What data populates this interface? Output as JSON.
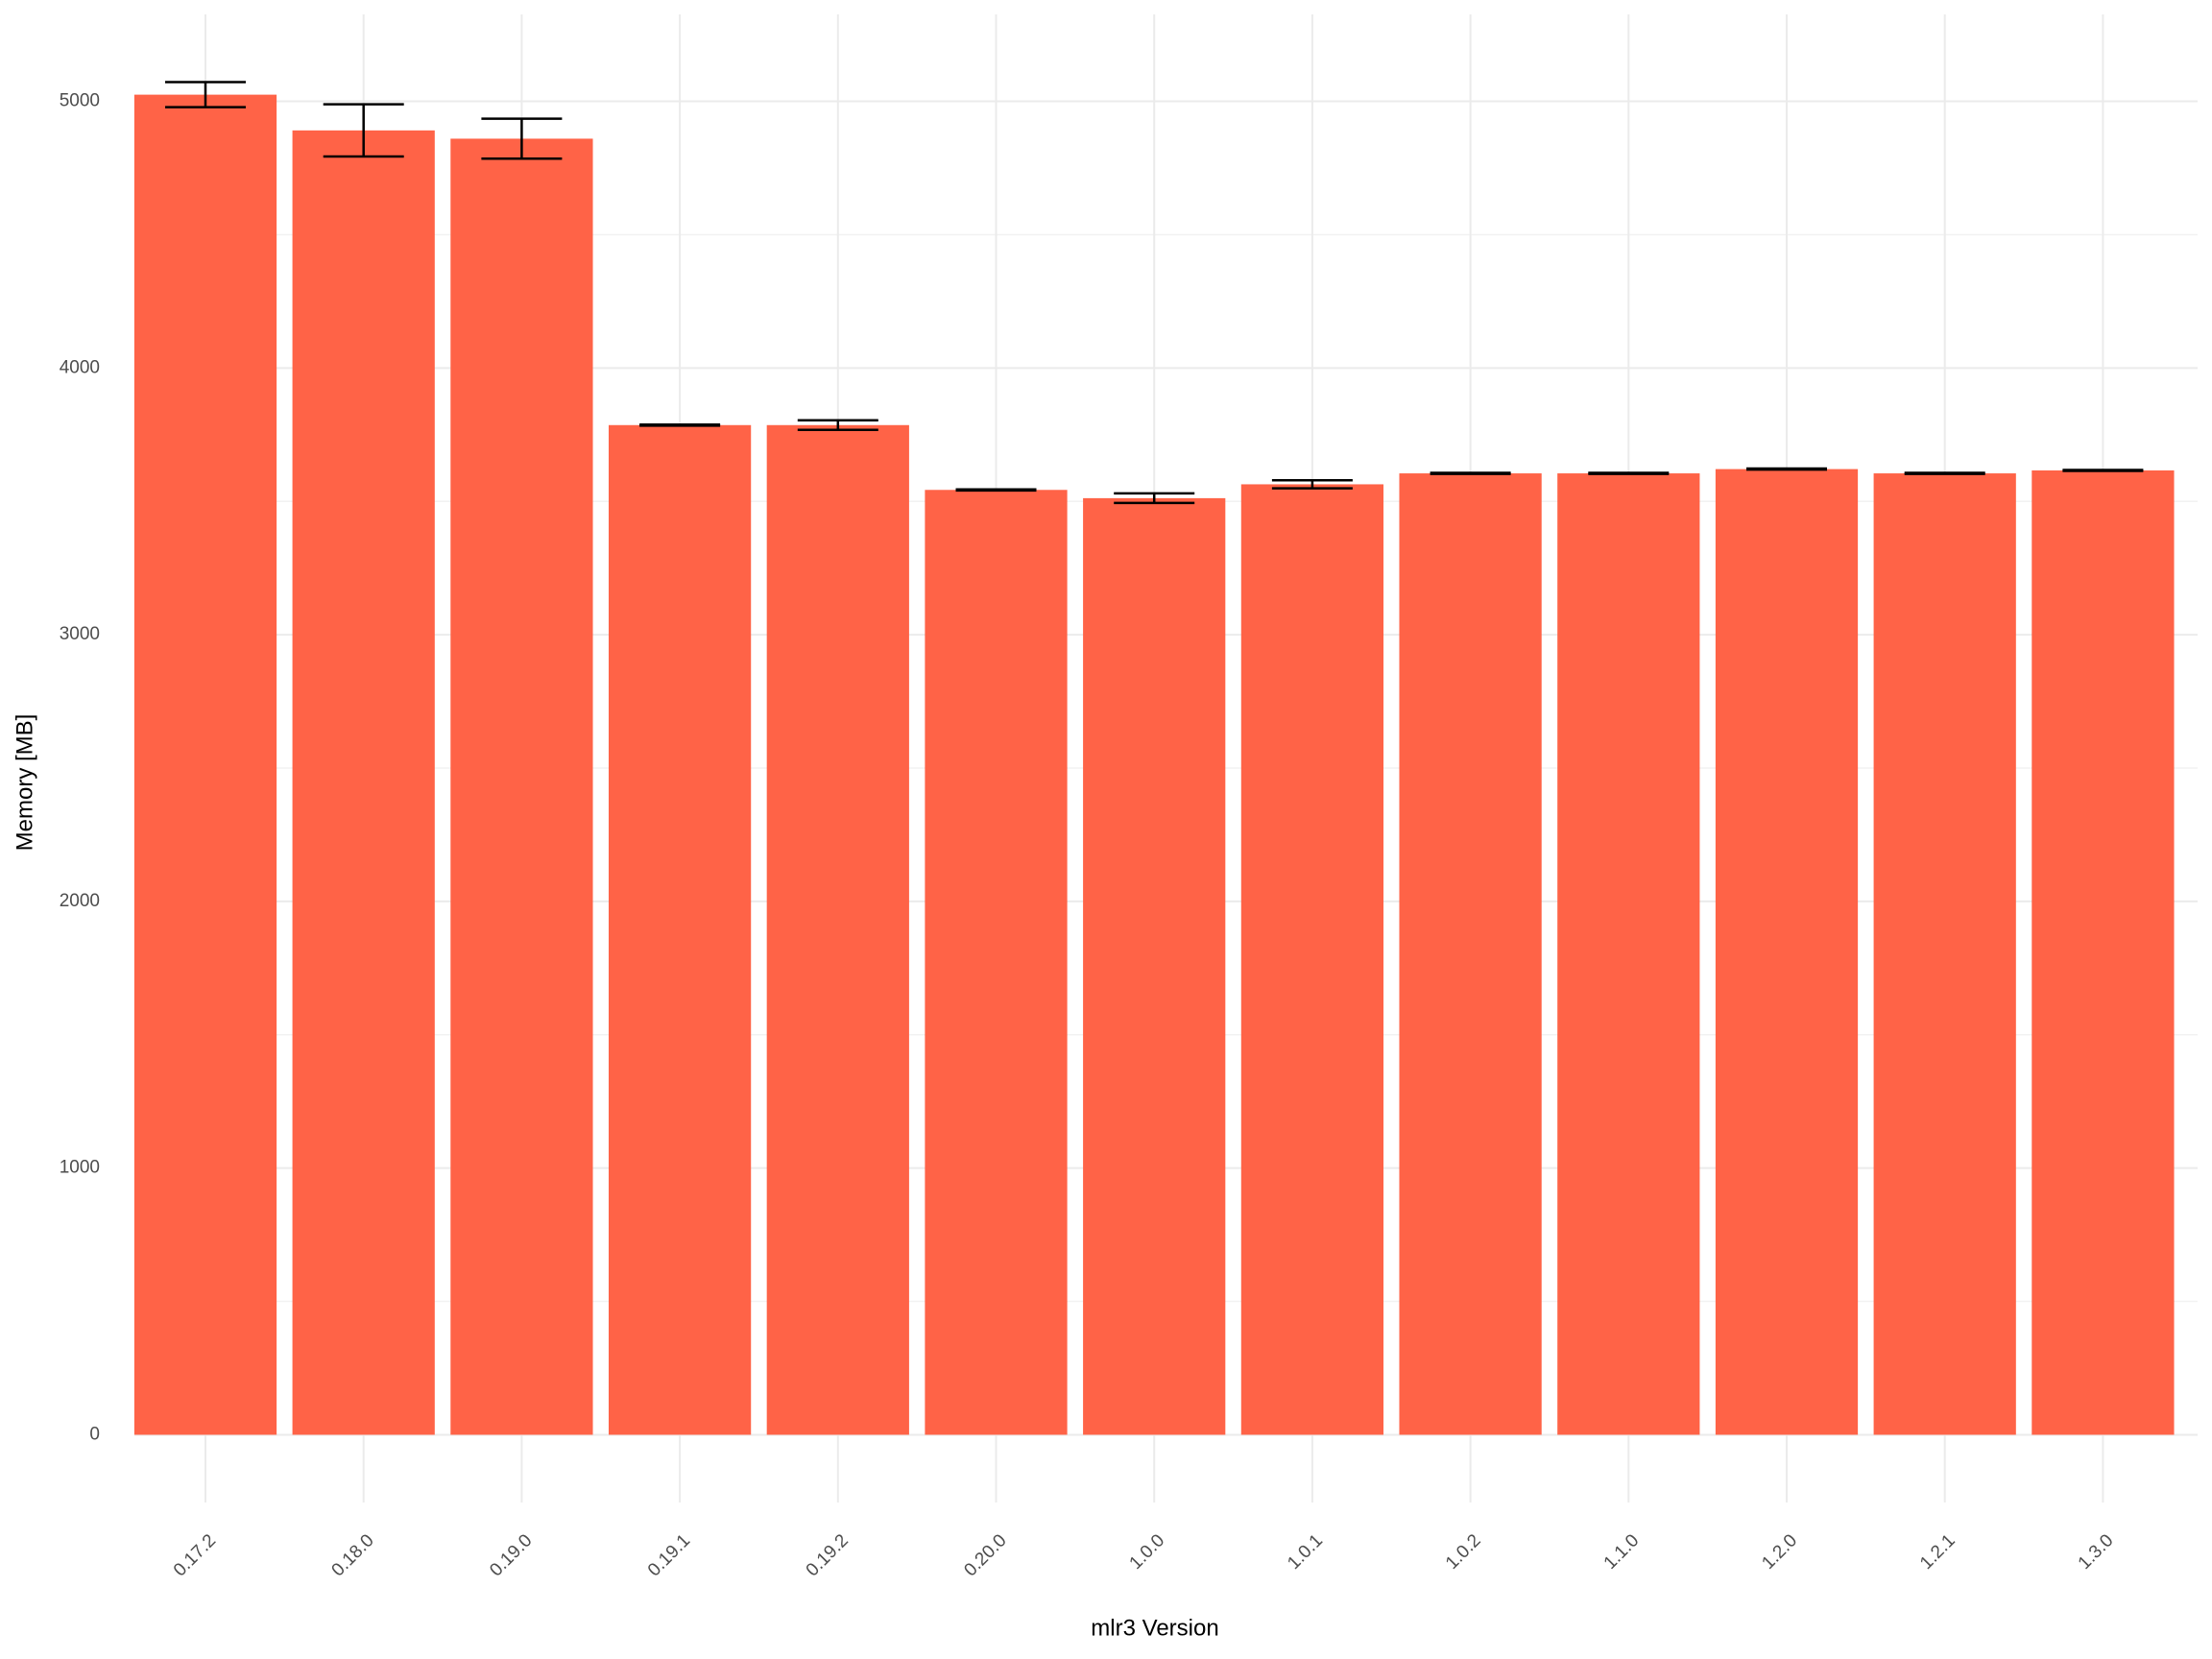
{
  "chart_data": {
    "type": "bar",
    "x_label": "mlr3 Version",
    "y_label": "Memory [MB]",
    "categories": [
      "0.17.2",
      "0.18.0",
      "0.19.0",
      "0.19.1",
      "0.19.2",
      "0.20.0",
      "1.0.0",
      "1.0.1",
      "1.0.2",
      "1.1.0",
      "1.2.0",
      "1.2.1",
      "1.3.0"
    ],
    "values": [
      5025,
      4891,
      4860,
      3786,
      3786,
      3543,
      3512,
      3564,
      3605,
      3605,
      3621,
      3605,
      3616
    ],
    "errors": [
      47,
      98,
      75,
      2,
      18,
      2,
      18,
      15,
      2,
      2,
      2,
      2,
      2
    ],
    "color": "#ff6347",
    "error_color": "#000000",
    "ylim": [
      -254,
      5326
    ],
    "yticks": [
      0,
      1000,
      2000,
      3000,
      4000,
      5000
    ],
    "grid": true
  }
}
